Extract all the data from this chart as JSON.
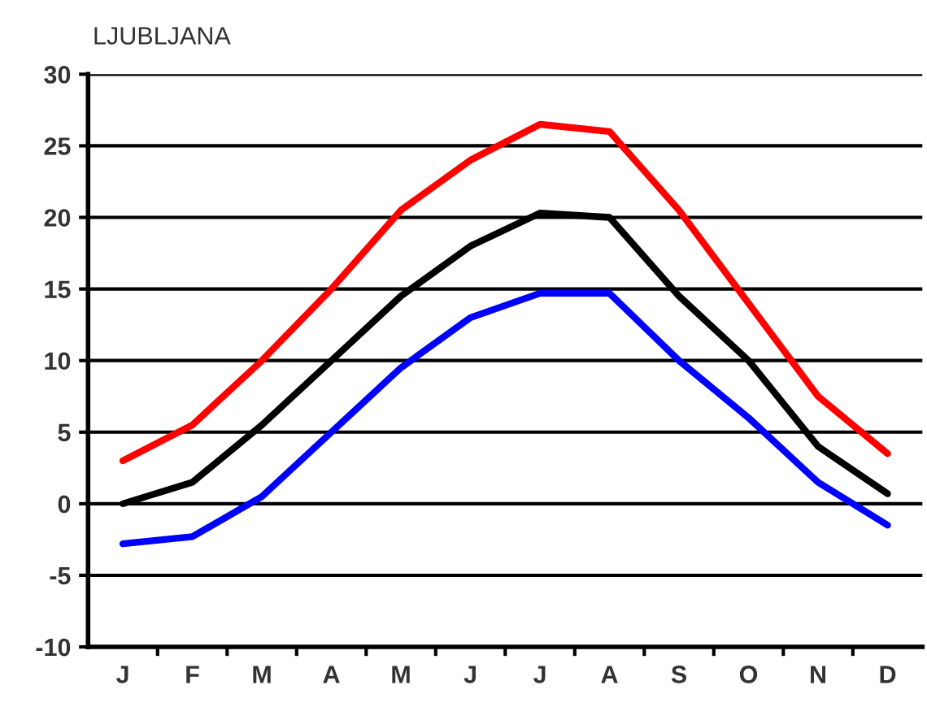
{
  "chart_data": {
    "type": "line",
    "title": "LJUBLJANA",
    "categories": [
      "J",
      "F",
      "M",
      "A",
      "M",
      "J",
      "J",
      "A",
      "S",
      "O",
      "N",
      "D"
    ],
    "series": [
      {
        "color": "#ff0000",
        "values": [
          3,
          5.5,
          10,
          15,
          20.5,
          24,
          26.5,
          26,
          20.5,
          14,
          7.5,
          3.5
        ]
      },
      {
        "color": "#000000",
        "values": [
          0,
          1.5,
          5.5,
          10,
          14.5,
          18,
          20.3,
          20,
          14.5,
          10,
          4,
          0.7
        ]
      },
      {
        "color": "#0000ff",
        "values": [
          -2.8,
          -2.3,
          0.5,
          5,
          9.5,
          13,
          14.7,
          14.7,
          10,
          6,
          1.5,
          -1.5
        ]
      }
    ],
    "ylim": [
      -10,
      30
    ],
    "yticks": [
      -10,
      -5,
      0,
      5,
      10,
      15,
      20,
      25,
      30
    ],
    "grid": "y",
    "marker": "none",
    "line_style": "solid"
  }
}
